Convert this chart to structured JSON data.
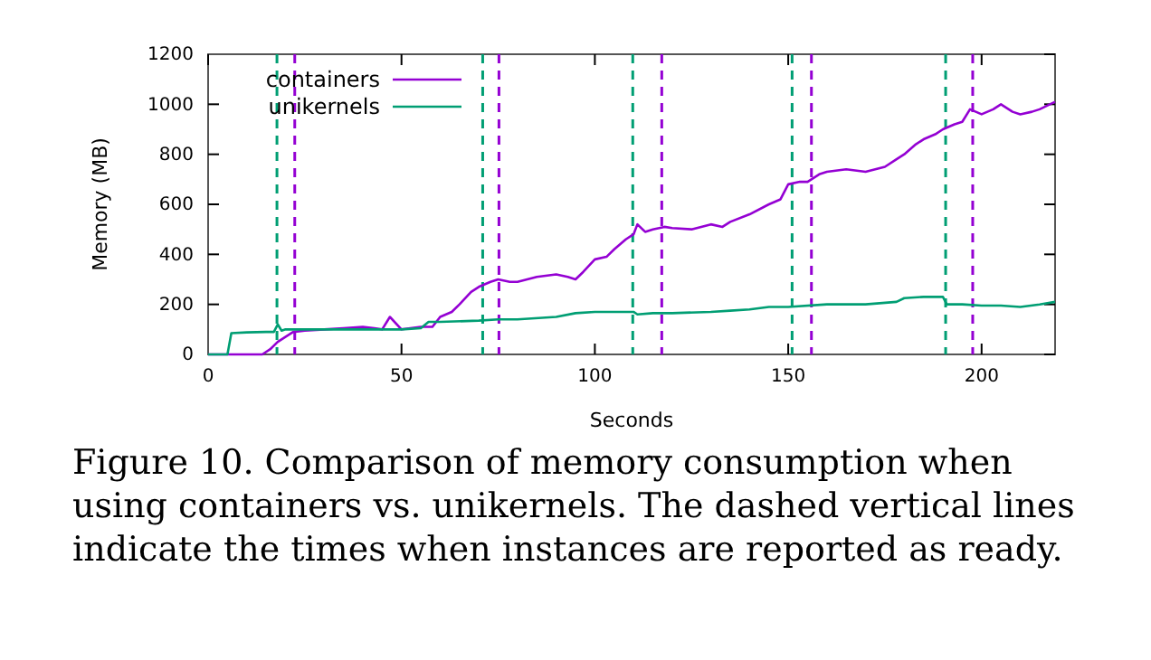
{
  "chart_data": {
    "type": "line",
    "xlabel": "Seconds",
    "ylabel": "Memory (MB)",
    "xlim": [
      0,
      219
    ],
    "ylim": [
      0,
      1200
    ],
    "xticks": [
      0,
      50,
      100,
      150,
      200
    ],
    "yticks": [
      0,
      200,
      400,
      600,
      800,
      1000,
      1200
    ],
    "grid": false,
    "legend": "top left",
    "line_style": "solid",
    "marker": "none",
    "series": [
      {
        "name": "containers",
        "color": "#9400d3",
        "x": [
          0,
          14,
          16,
          18,
          20,
          22,
          25,
          30,
          35,
          40,
          43,
          45,
          47,
          50,
          55,
          58,
          60,
          63,
          65,
          68,
          70,
          73,
          75,
          78,
          80,
          85,
          90,
          93,
          95,
          97,
          100,
          103,
          105,
          108,
          110,
          111,
          113,
          115,
          118,
          120,
          125,
          130,
          133,
          135,
          140,
          145,
          148,
          150,
          153,
          155,
          158,
          160,
          165,
          170,
          175,
          178,
          180,
          183,
          185,
          188,
          190,
          193,
          195,
          197,
          200,
          203,
          205,
          208,
          210,
          213,
          215,
          219
        ],
        "values": [
          0,
          0,
          20,
          50,
          70,
          90,
          95,
          100,
          105,
          110,
          105,
          100,
          150,
          100,
          110,
          110,
          150,
          170,
          200,
          250,
          270,
          290,
          300,
          290,
          290,
          310,
          320,
          310,
          300,
          330,
          380,
          390,
          420,
          460,
          480,
          520,
          490,
          500,
          510,
          505,
          500,
          520,
          510,
          530,
          560,
          600,
          620,
          680,
          690,
          690,
          720,
          730,
          740,
          730,
          750,
          780,
          800,
          840,
          860,
          880,
          900,
          920,
          930,
          980,
          960,
          980,
          1000,
          970,
          960,
          970,
          980,
          1010
        ]
      },
      {
        "name": "unikernels",
        "color": "#009e73",
        "x": [
          0,
          5,
          6,
          10,
          15,
          17,
          18,
          19,
          20,
          25,
          30,
          40,
          50,
          55,
          57,
          60,
          70,
          75,
          80,
          90,
          95,
          100,
          110,
          111,
          115,
          120,
          130,
          135,
          140,
          145,
          150,
          160,
          165,
          170,
          178,
          180,
          185,
          190,
          191,
          195,
          200,
          205,
          210,
          215,
          219
        ],
        "values": [
          0,
          0,
          85,
          88,
          90,
          90,
          120,
          95,
          100,
          100,
          100,
          100,
          100,
          105,
          130,
          130,
          135,
          140,
          140,
          150,
          165,
          170,
          170,
          160,
          165,
          165,
          170,
          175,
          180,
          190,
          190,
          200,
          200,
          200,
          210,
          225,
          230,
          230,
          200,
          200,
          195,
          195,
          190,
          200,
          210
        ]
      }
    ],
    "ref_lines": [
      {
        "axis": "x",
        "value": 17.8,
        "color": "#009e73",
        "line_style": "dashed"
      },
      {
        "axis": "x",
        "value": 22.4,
        "color": "#9400d3",
        "line_style": "dashed"
      },
      {
        "axis": "x",
        "value": 71,
        "color": "#009e73",
        "line_style": "dashed"
      },
      {
        "axis": "x",
        "value": 75.2,
        "color": "#9400d3",
        "line_style": "dashed"
      },
      {
        "axis": "x",
        "value": 109.8,
        "color": "#009e73",
        "line_style": "dashed"
      },
      {
        "axis": "x",
        "value": 117.3,
        "color": "#9400d3",
        "line_style": "dashed"
      },
      {
        "axis": "x",
        "value": 151,
        "color": "#009e73",
        "line_style": "dashed"
      },
      {
        "axis": "x",
        "value": 156,
        "color": "#9400d3",
        "line_style": "dashed"
      },
      {
        "axis": "x",
        "value": 190.7,
        "color": "#009e73",
        "line_style": "dashed"
      },
      {
        "axis": "x",
        "value": 197.7,
        "color": "#9400d3",
        "line_style": "dashed"
      }
    ],
    "annotations": [
      "Figure 10. Comparison of memory consumption when using containers vs. unikernels. The dashed vertical lines indicate the times when instances are reported as ready."
    ]
  }
}
